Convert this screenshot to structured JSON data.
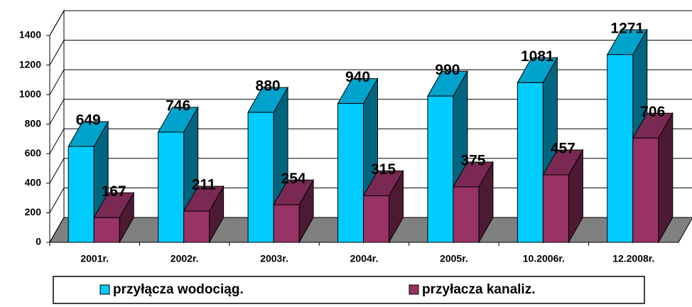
{
  "chart_data": {
    "type": "bar3d",
    "categories": [
      "2001r.",
      "2002r.",
      "2003r.",
      "2004r.",
      "2005r.",
      "10.2006r.",
      "12.2008r."
    ],
    "series": [
      {
        "name": "przyłącza wodociąg.",
        "color": "#00ccff",
        "values": [
          649,
          746,
          880,
          940,
          990,
          1081,
          1271
        ]
      },
      {
        "name": "przyłacza kanaliz.",
        "color": "#993366",
        "values": [
          167,
          211,
          254,
          315,
          375,
          457,
          706
        ]
      }
    ],
    "ylim": [
      0,
      1400
    ],
    "yticks": [
      0,
      200,
      400,
      600,
      800,
      1000,
      1200,
      1400
    ],
    "grid": true,
    "legend": "bottom"
  }
}
